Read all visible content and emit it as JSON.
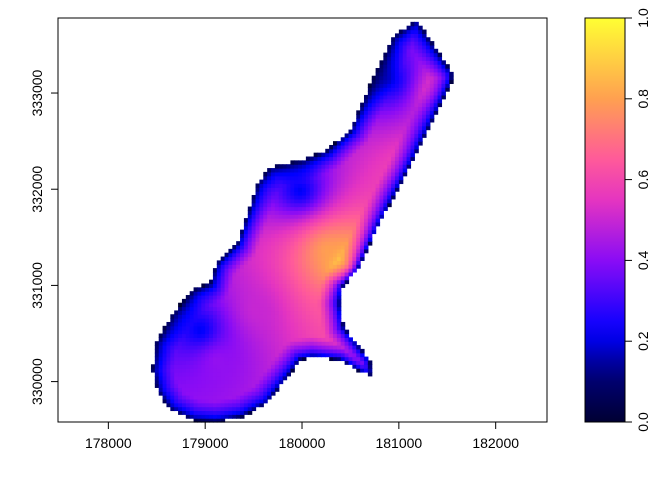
{
  "chart_data": {
    "type": "heatmap",
    "title": "",
    "xlabel": "",
    "ylabel": "",
    "xlim": [
      177480,
      182530
    ],
    "ylim": [
      329580,
      333780
    ],
    "x_ticks": [
      "178000",
      "179000",
      "180000",
      "181000",
      "182000"
    ],
    "x_tick_values": [
      178000,
      179000,
      180000,
      181000,
      182000
    ],
    "y_ticks": [
      "330000",
      "331000",
      "332000",
      "333000"
    ],
    "y_tick_values": [
      330000,
      331000,
      332000,
      333000
    ],
    "cell_size": 40,
    "value_range": [
      0,
      1
    ],
    "colormap": "bpy",
    "colormap_stops": [
      [
        0.0,
        "#000033"
      ],
      [
        0.12,
        "#00007a"
      ],
      [
        0.22,
        "#0000ff"
      ],
      [
        0.4,
        "#8a0cf5"
      ],
      [
        0.55,
        "#e535c0"
      ],
      [
        0.65,
        "#ff5a9a"
      ],
      [
        0.8,
        "#ffa050"
      ],
      [
        1.0,
        "#ffff33"
      ]
    ],
    "colorbar": {
      "ticks": [
        "0.0",
        "0.2",
        "0.4",
        "0.6",
        "0.8",
        "1.0"
      ],
      "tick_values": [
        0,
        0.2,
        0.4,
        0.6,
        0.8,
        1.0
      ],
      "placement": "right"
    },
    "region_outline": [
      [
        181190,
        333760
      ],
      [
        181550,
        333210
      ],
      [
        181550,
        333140
      ],
      [
        181350,
        332720
      ],
      [
        181040,
        332100
      ],
      [
        180800,
        331650
      ],
      [
        180570,
        331160
      ],
      [
        180420,
        330990
      ],
      [
        180390,
        330820
      ],
      [
        180430,
        330570
      ],
      [
        180530,
        330440
      ],
      [
        180700,
        330230
      ],
      [
        180720,
        330070
      ],
      [
        180630,
        330090
      ],
      [
        180390,
        330230
      ],
      [
        180110,
        330260
      ],
      [
        179980,
        330230
      ],
      [
        179850,
        330050
      ],
      [
        179640,
        329780
      ],
      [
        179390,
        329640
      ],
      [
        179120,
        329580
      ],
      [
        178880,
        329600
      ],
      [
        178640,
        329710
      ],
      [
        178510,
        329890
      ],
      [
        178450,
        330120
      ],
      [
        178490,
        330410
      ],
      [
        178670,
        330720
      ],
      [
        178880,
        330960
      ],
      [
        179050,
        331030
      ],
      [
        179120,
        331240
      ],
      [
        179330,
        331440
      ],
      [
        179440,
        331760
      ],
      [
        179540,
        332070
      ],
      [
        179670,
        332230
      ],
      [
        180010,
        332310
      ],
      [
        180260,
        332410
      ],
      [
        180500,
        332620
      ],
      [
        180600,
        332860
      ],
      [
        180770,
        333240
      ],
      [
        180940,
        333590
      ],
      [
        181150,
        333740
      ]
    ],
    "value_samples": [
      {
        "x": 180460,
        "y": 331200,
        "v": 1.0
      },
      {
        "x": 180260,
        "y": 331370,
        "v": 0.8
      },
      {
        "x": 181420,
        "y": 333000,
        "v": 0.6
      },
      {
        "x": 181080,
        "y": 332200,
        "v": 0.6
      },
      {
        "x": 180390,
        "y": 330850,
        "v": 0.6
      },
      {
        "x": 179540,
        "y": 330750,
        "v": 0.5
      },
      {
        "x": 179120,
        "y": 330230,
        "v": 0.42
      },
      {
        "x": 178950,
        "y": 330540,
        "v": 0.2
      },
      {
        "x": 179980,
        "y": 331990,
        "v": 0.2
      },
      {
        "x": 180910,
        "y": 333140,
        "v": 0.2
      }
    ]
  }
}
